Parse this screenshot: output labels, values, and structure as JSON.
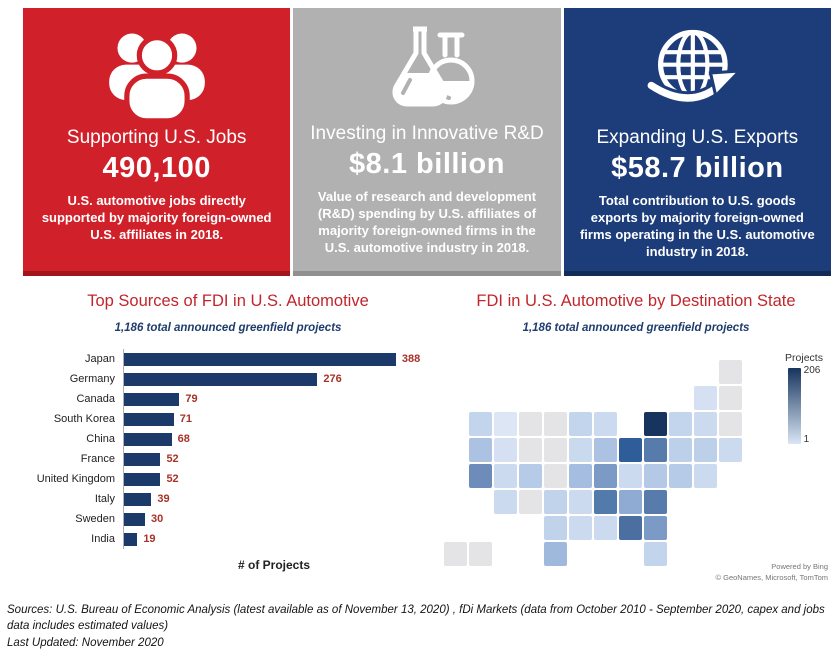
{
  "theme": {
    "title_red": "#c0262c",
    "subtitle_navy": "#1f3c6d"
  },
  "panels": [
    {
      "icon": "people-group-icon",
      "bg": "#d0212a",
      "border": "#a2151d",
      "title": "Supporting U.S. Jobs",
      "value": "490,100",
      "description": "U.S. automotive jobs directly supported by majority foreign-owned U.S. affiliates in 2018."
    },
    {
      "icon": "lab-flasks-icon",
      "bg": "#b1b1b2",
      "border": "#909091",
      "title": "Investing in Innovative R&D",
      "value": "$8.1 billion",
      "description": "Value of research and development (R&D) spending by U.S. affiliates of majority foreign-owned firms in the U.S. automotive industry in 2018."
    },
    {
      "icon": "globe-export-arrow-icon",
      "bg": "#1d3d7a",
      "border": "#132b57",
      "title": "Expanding U.S. Exports",
      "value": "$58.7 billion",
      "description": "Total contribution to U.S. goods exports by majority foreign-owned firms operating in the U.S. automotive industry in 2018."
    }
  ],
  "chart_data": [
    {
      "type": "bar",
      "orientation": "horizontal",
      "title": "Top Sources of FDI in U.S. Automotive",
      "subtitle": "1,186 total announced greenfield projects",
      "categories": [
        "Japan",
        "Germany",
        "Canada",
        "South Korea",
        "China",
        "France",
        "United Kingdom",
        "Italy",
        "Sweden",
        "India"
      ],
      "values": [
        388,
        276,
        79,
        71,
        68,
        52,
        52,
        39,
        30,
        19
      ],
      "xlabel": "# of Projects",
      "xlim": [
        0,
        440
      ],
      "grid": false,
      "bar_color": "#1b3a69",
      "value_label_color": "#a83228"
    },
    {
      "type": "choropleth",
      "title": "FDI in U.S. Automotive by Destination State",
      "subtitle": "1,186 total announced greenfield projects",
      "legend": {
        "title": "Projects",
        "max": "206",
        "min": "1",
        "color_max": "#16345d",
        "color_min": "#d9e6f5",
        "position": "right"
      },
      "no_data_color": "#e4e4e6",
      "attribution": [
        "Powered by Bing",
        "© GeoNames, Microsoft, TomTom"
      ],
      "states": [
        {
          "code": "ME",
          "col": 11,
          "row": 0,
          "fill": "#e4e4e6"
        },
        {
          "code": "VT",
          "col": 10,
          "row": 1,
          "fill": "#d5e1f2"
        },
        {
          "code": "NH",
          "col": 11,
          "row": 1,
          "fill": "#e4e4e6"
        },
        {
          "code": "WA",
          "col": 1,
          "row": 2,
          "fill": "#c3d5ec"
        },
        {
          "code": "ID",
          "col": 2,
          "row": 2,
          "fill": "#dce6f4"
        },
        {
          "code": "MT",
          "col": 3,
          "row": 2,
          "fill": "#e4e4e6"
        },
        {
          "code": "ND",
          "col": 4,
          "row": 2,
          "fill": "#e4e4e6"
        },
        {
          "code": "MN",
          "col": 5,
          "row": 2,
          "fill": "#c3d5ec"
        },
        {
          "code": "WI",
          "col": 6,
          "row": 2,
          "fill": "#cbdaee"
        },
        {
          "code": "MI",
          "col": 8,
          "row": 2,
          "fill": "#16345d"
        },
        {
          "code": "NY",
          "col": 9,
          "row": 2,
          "fill": "#c3d5ec"
        },
        {
          "code": "MA",
          "col": 10,
          "row": 2,
          "fill": "#cbdaee"
        },
        {
          "code": "RI",
          "col": 11,
          "row": 2,
          "fill": "#e4e4e6"
        },
        {
          "code": "OR",
          "col": 1,
          "row": 3,
          "fill": "#abc2e3"
        },
        {
          "code": "NV",
          "col": 2,
          "row": 3,
          "fill": "#d5e1f2"
        },
        {
          "code": "WY",
          "col": 3,
          "row": 3,
          "fill": "#e4e4e6"
        },
        {
          "code": "SD",
          "col": 4,
          "row": 3,
          "fill": "#e4e4e6"
        },
        {
          "code": "IA",
          "col": 5,
          "row": 3,
          "fill": "#c9d9ee"
        },
        {
          "code": "IL",
          "col": 6,
          "row": 3,
          "fill": "#abc2e3"
        },
        {
          "code": "IN",
          "col": 7,
          "row": 3,
          "fill": "#2f5d99"
        },
        {
          "code": "OH",
          "col": 8,
          "row": 3,
          "fill": "#577cab"
        },
        {
          "code": "PA",
          "col": 9,
          "row": 3,
          "fill": "#bdd0ea"
        },
        {
          "code": "NJ",
          "col": 10,
          "row": 3,
          "fill": "#bdd0ea"
        },
        {
          "code": "CT",
          "col": 11,
          "row": 3,
          "fill": "#cbdaee"
        },
        {
          "code": "CA",
          "col": 1,
          "row": 4,
          "fill": "#6e8cba"
        },
        {
          "code": "UT",
          "col": 2,
          "row": 4,
          "fill": "#cbdaee"
        },
        {
          "code": "CO",
          "col": 3,
          "row": 4,
          "fill": "#b6cbe7"
        },
        {
          "code": "NE",
          "col": 4,
          "row": 4,
          "fill": "#e4e4e6"
        },
        {
          "code": "MO",
          "col": 5,
          "row": 4,
          "fill": "#a5bde0"
        },
        {
          "code": "KY",
          "col": 6,
          "row": 4,
          "fill": "#7b9ac6"
        },
        {
          "code": "WV",
          "col": 7,
          "row": 4,
          "fill": "#cbdaee"
        },
        {
          "code": "VA",
          "col": 8,
          "row": 4,
          "fill": "#b3c9e6"
        },
        {
          "code": "MD",
          "col": 9,
          "row": 4,
          "fill": "#b6cbe7"
        },
        {
          "code": "DE",
          "col": 10,
          "row": 4,
          "fill": "#cbdaee"
        },
        {
          "code": "AZ",
          "col": 2,
          "row": 5,
          "fill": "#cbdaee"
        },
        {
          "code": "NM",
          "col": 3,
          "row": 5,
          "fill": "#e4e4e6"
        },
        {
          "code": "KS",
          "col": 4,
          "row": 5,
          "fill": "#c0d3eb"
        },
        {
          "code": "AR",
          "col": 5,
          "row": 5,
          "fill": "#cbdaee"
        },
        {
          "code": "TN",
          "col": 6,
          "row": 5,
          "fill": "#527aab"
        },
        {
          "code": "NC",
          "col": 7,
          "row": 5,
          "fill": "#8fabd3"
        },
        {
          "code": "SC",
          "col": 8,
          "row": 5,
          "fill": "#577cab"
        },
        {
          "code": "OK",
          "col": 4,
          "row": 6,
          "fill": "#c0d3eb"
        },
        {
          "code": "LA",
          "col": 5,
          "row": 6,
          "fill": "#cbdaee"
        },
        {
          "code": "MS",
          "col": 6,
          "row": 6,
          "fill": "#cbdaee"
        },
        {
          "code": "AL",
          "col": 7,
          "row": 6,
          "fill": "#4a6fa0"
        },
        {
          "code": "GA",
          "col": 8,
          "row": 6,
          "fill": "#7b9ac6"
        },
        {
          "code": "AK",
          "col": 0,
          "row": 7,
          "fill": "#e4e4e6"
        },
        {
          "code": "HI",
          "col": 1,
          "row": 7,
          "fill": "#e4e4e6"
        },
        {
          "code": "TX",
          "col": 4,
          "row": 7,
          "fill": "#9fb9dd"
        },
        {
          "code": "FL",
          "col": 8,
          "row": 7,
          "fill": "#c3d5ec"
        }
      ]
    }
  ],
  "sources": {
    "line1": "Sources: U.S. Bureau of Economic Analysis (latest available as of November 13, 2020) , fDi Markets (data from October 2010 - September 2020, capex and jobs data includes estimated values)",
    "line2": "Last Updated: November 2020"
  }
}
